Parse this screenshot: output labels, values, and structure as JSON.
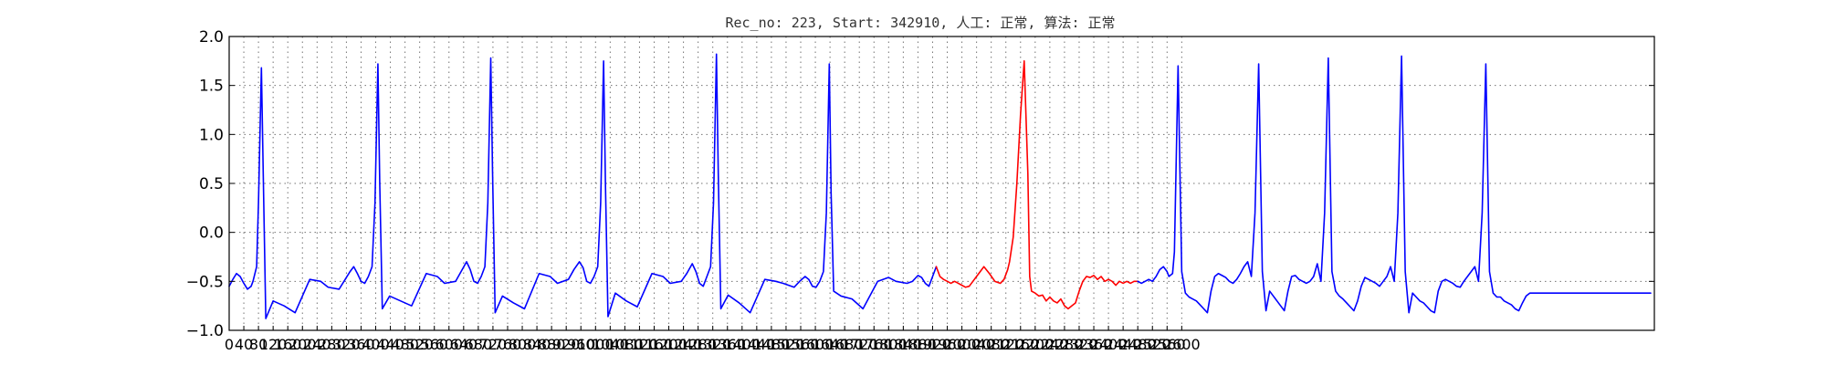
{
  "chart_data": {
    "type": "line",
    "title": "Rec_no: 223, Start: 342910, 人工: 正常, 算法: 正常",
    "xlabel": "",
    "ylabel": "",
    "xlim": [
      0,
      3890
    ],
    "ylim": [
      -1.0,
      2.0
    ],
    "grid": true,
    "yticks": [
      {
        "value": -1.0,
        "label": "−1.0"
      },
      {
        "value": -0.5,
        "label": "−0.5"
      },
      {
        "value": 0.0,
        "label": "0.0"
      },
      {
        "value": 0.5,
        "label": "0.5"
      },
      {
        "value": 1.0,
        "label": "1.0"
      },
      {
        "value": 1.5,
        "label": "1.5"
      },
      {
        "value": 2.0,
        "label": "2.0"
      }
    ],
    "xtick_step": 40,
    "xtick_max": 2600,
    "series": [
      {
        "color": "#0000ff",
        "x": [
          0,
          10,
          20,
          30,
          40,
          50,
          60,
          65,
          75,
          80,
          88,
          93,
          100,
          120,
          150,
          180,
          220,
          250,
          270,
          300,
          330,
          340,
          350,
          360,
          370,
          380,
          390,
          398,
          406,
          411,
          418,
          438,
          468,
          498,
          538,
          568,
          588,
          618,
          633,
          648,
          658,
          668,
          678,
          688,
          698,
          706,
          714,
          719,
          726,
          746,
          776,
          806,
          846,
          876,
          896,
          926,
          941,
          956,
          966,
          976,
          986,
          996,
          1006,
          1014,
          1022,
          1027,
          1034,
          1054,
          1084,
          1114,
          1154,
          1184,
          1204,
          1234,
          1249,
          1264,
          1274,
          1284,
          1294,
          1304,
          1314,
          1322,
          1330,
          1335,
          1342,
          1362,
          1392,
          1422,
          1462,
          1492,
          1512,
          1542,
          1557,
          1572,
          1582,
          1592,
          1602,
          1612,
          1622,
          1630,
          1638,
          1643,
          1650,
          1670,
          1700,
          1730,
          1770,
          1800,
          1820,
          1850,
          1865,
          1880,
          1890,
          1900,
          1910,
          1920,
          1930
        ],
        "y": [
          -0.55,
          -0.48,
          -0.42,
          -0.45,
          -0.52,
          -0.58,
          -0.55,
          -0.5,
          -0.35,
          0.3,
          1.68,
          0.6,
          -0.88,
          -0.7,
          -0.75,
          -0.82,
          -0.48,
          -0.5,
          -0.56,
          -0.58,
          -0.4,
          -0.35,
          -0.42,
          -0.5,
          -0.52,
          -0.45,
          -0.35,
          0.3,
          1.72,
          0.5,
          -0.78,
          -0.65,
          -0.7,
          -0.75,
          -0.42,
          -0.45,
          -0.52,
          -0.5,
          -0.4,
          -0.3,
          -0.38,
          -0.5,
          -0.52,
          -0.45,
          -0.35,
          0.3,
          1.78,
          0.6,
          -0.82,
          -0.65,
          -0.72,
          -0.78,
          -0.42,
          -0.45,
          -0.52,
          -0.48,
          -0.38,
          -0.3,
          -0.36,
          -0.5,
          -0.52,
          -0.45,
          -0.35,
          0.3,
          1.75,
          0.5,
          -0.86,
          -0.62,
          -0.7,
          -0.76,
          -0.42,
          -0.45,
          -0.52,
          -0.5,
          -0.42,
          -0.32,
          -0.4,
          -0.52,
          -0.55,
          -0.45,
          -0.35,
          0.3,
          1.82,
          0.6,
          -0.78,
          -0.64,
          -0.72,
          -0.82,
          -0.48,
          -0.5,
          -0.52,
          -0.56,
          -0.5,
          -0.45,
          -0.48,
          -0.55,
          -0.56,
          -0.5,
          -0.4,
          0.2,
          1.72,
          0.4,
          -0.6,
          -0.65,
          -0.68,
          -0.78,
          -0.5,
          -0.46,
          -0.5,
          -0.52,
          -0.5,
          -0.44,
          -0.46,
          -0.52,
          -0.55,
          -0.45,
          -0.35
        ]
      },
      {
        "color": "#ff0000",
        "x": [
          1930,
          1935,
          1940,
          1950,
          1960,
          1970,
          1980,
          1990,
          2000,
          2010,
          2020,
          2030,
          2040,
          2050,
          2060,
          2075,
          2090,
          2105,
          2115,
          2125,
          2130,
          2140,
          2150,
          2160,
          2170,
          2180,
          2185,
          2190,
          2200,
          2210,
          2220,
          2230,
          2240,
          2250,
          2260,
          2270,
          2280,
          2290,
          2300,
          2310,
          2320,
          2330,
          2340,
          2350,
          2360,
          2370,
          2380,
          2390,
          2400,
          2410,
          2415,
          2420,
          2430,
          2440,
          2450,
          2460,
          2470,
          2480
        ],
        "y": [
          -0.35,
          -0.4,
          -0.45,
          -0.48,
          -0.5,
          -0.52,
          -0.5,
          -0.52,
          -0.54,
          -0.56,
          -0.55,
          -0.5,
          -0.45,
          -0.4,
          -0.35,
          -0.42,
          -0.5,
          -0.52,
          -0.48,
          -0.38,
          -0.3,
          -0.05,
          0.5,
          1.2,
          1.75,
          0.6,
          -0.45,
          -0.6,
          -0.62,
          -0.65,
          -0.64,
          -0.7,
          -0.66,
          -0.7,
          -0.72,
          -0.68,
          -0.75,
          -0.78,
          -0.75,
          -0.72,
          -0.6,
          -0.5,
          -0.45,
          -0.46,
          -0.44,
          -0.48,
          -0.45,
          -0.5,
          -0.48,
          -0.5,
          -0.52,
          -0.54,
          -0.5,
          -0.52,
          -0.5,
          -0.52,
          -0.5,
          -0.5
        ]
      },
      {
        "color": "#0000ff",
        "x": [
          2480,
          2490,
          2500,
          2510,
          2520,
          2530,
          2540,
          2550,
          2560,
          2565,
          2575,
          2580,
          2590,
          2600,
          2610,
          2620,
          2630,
          2640,
          2650,
          2660,
          2670,
          2680,
          2690,
          2700,
          2710,
          2720,
          2730,
          2740,
          2750,
          2760,
          2770,
          2780,
          2790,
          2800,
          2810,
          2820,
          2830,
          2840,
          2850,
          2860,
          2870,
          2880,
          2890,
          2900,
          2910,
          2920,
          2930,
          2940,
          2950,
          2960,
          2970,
          2980,
          2990,
          3000,
          3010,
          3020,
          3030,
          3040,
          3050,
          3060,
          3070,
          3080,
          3090,
          3100,
          3110,
          3120,
          3130,
          3140,
          3150,
          3160,
          3170,
          3180,
          3190,
          3200,
          3210,
          3220,
          3230,
          3240,
          3250,
          3260,
          3270,
          3280,
          3290,
          3300,
          3310,
          3320,
          3330,
          3340,
          3350,
          3360,
          3370,
          3380,
          3390,
          3400,
          3410,
          3420,
          3430,
          3440,
          3450,
          3460,
          3470,
          3480,
          3490,
          3500,
          3510,
          3520,
          3530,
          3540,
          3550,
          3560,
          3570,
          3580,
          3590,
          3600,
          3610,
          3620,
          3630,
          3640,
          3650,
          3660,
          3670,
          3680,
          3690,
          3700,
          3710,
          3720,
          3730,
          3740,
          3750,
          3760,
          3770,
          3780,
          3790,
          3800,
          3810,
          3820,
          3830,
          3840,
          3850,
          3860,
          3870,
          3880
        ],
        "y": [
          -0.5,
          -0.52,
          -0.5,
          -0.48,
          -0.5,
          -0.45,
          -0.38,
          -0.35,
          -0.4,
          -0.45,
          -0.42,
          -0.2,
          1.7,
          -0.4,
          -0.62,
          -0.66,
          -0.68,
          -0.7,
          -0.74,
          -0.78,
          -0.82,
          -0.6,
          -0.45,
          -0.42,
          -0.44,
          -0.46,
          -0.5,
          -0.52,
          -0.48,
          -0.42,
          -0.35,
          -0.3,
          -0.45,
          0.2,
          1.72,
          -0.4,
          -0.8,
          -0.6,
          -0.65,
          -0.7,
          -0.75,
          -0.8,
          -0.6,
          -0.45,
          -0.44,
          -0.48,
          -0.5,
          -0.52,
          -0.5,
          -0.45,
          -0.32,
          -0.5,
          0.2,
          1.78,
          -0.4,
          -0.6,
          -0.65,
          -0.68,
          -0.72,
          -0.76,
          -0.8,
          -0.7,
          -0.55,
          -0.46,
          -0.48,
          -0.5,
          -0.52,
          -0.55,
          -0.5,
          -0.45,
          -0.35,
          -0.5,
          0.2,
          1.8,
          -0.4,
          -0.82,
          -0.62,
          -0.66,
          -0.7,
          -0.72,
          -0.76,
          -0.8,
          -0.82,
          -0.6,
          -0.5,
          -0.48,
          -0.5,
          -0.52,
          -0.55,
          -0.56,
          -0.5,
          -0.45,
          -0.4,
          -0.35,
          -0.5,
          0.2,
          1.72,
          -0.4,
          -0.62,
          -0.66,
          -0.66,
          -0.7,
          -0.72,
          -0.74,
          -0.78,
          -0.8,
          -0.72,
          -0.65,
          -0.62,
          -0.62,
          -0.62,
          -0.62,
          -0.62,
          -0.62,
          -0.62,
          -0.62,
          -0.62,
          -0.62,
          -0.62,
          -0.62,
          -0.62,
          -0.62,
          -0.62,
          -0.62,
          -0.62,
          -0.62,
          -0.62,
          -0.62,
          -0.62,
          -0.62,
          -0.62,
          -0.62,
          -0.62,
          -0.62,
          -0.62,
          -0.62,
          -0.62,
          -0.62,
          -0.62,
          -0.62,
          -0.62,
          -0.62
        ]
      }
    ]
  }
}
